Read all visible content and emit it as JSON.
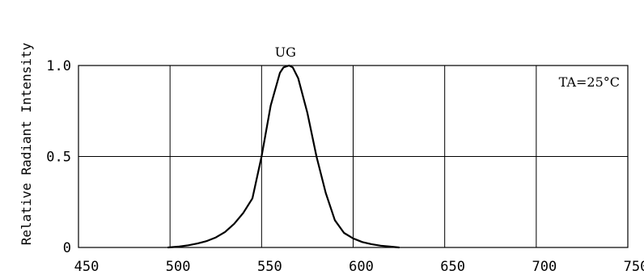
{
  "chart_data": {
    "type": "line",
    "title": "",
    "xlabel": "",
    "ylabel": "Relative Radiant Intensity",
    "xlim": [
      450,
      750
    ],
    "ylim": [
      0,
      1.0
    ],
    "grid": true,
    "x_ticks": [
      "450",
      "500",
      "550",
      "600",
      "650",
      "700",
      "750"
    ],
    "y_ticks": [
      {
        "value": 0,
        "label": "0"
      },
      {
        "value": 0.5,
        "label": "0.5"
      },
      {
        "value": 1.0,
        "label": "1.0"
      }
    ],
    "series": [
      {
        "name": "UG",
        "x": [
          499,
          505,
          510,
          515,
          520,
          525,
          530,
          535,
          540,
          545,
          550,
          555,
          560,
          562,
          565,
          567,
          570,
          575,
          580,
          585,
          590,
          595,
          600,
          605,
          610,
          615,
          620,
          625
        ],
        "y": [
          0.0,
          0.005,
          0.012,
          0.022,
          0.035,
          0.055,
          0.085,
          0.13,
          0.19,
          0.27,
          0.5,
          0.78,
          0.96,
          0.99,
          1.0,
          0.99,
          0.93,
          0.74,
          0.5,
          0.3,
          0.15,
          0.08,
          0.05,
          0.03,
          0.018,
          0.01,
          0.005,
          0.0
        ]
      }
    ],
    "annotations": [
      {
        "text": "UG",
        "x": 563,
        "y": 1.0
      },
      {
        "text": "TA=25°C",
        "position": "top-right"
      }
    ]
  }
}
